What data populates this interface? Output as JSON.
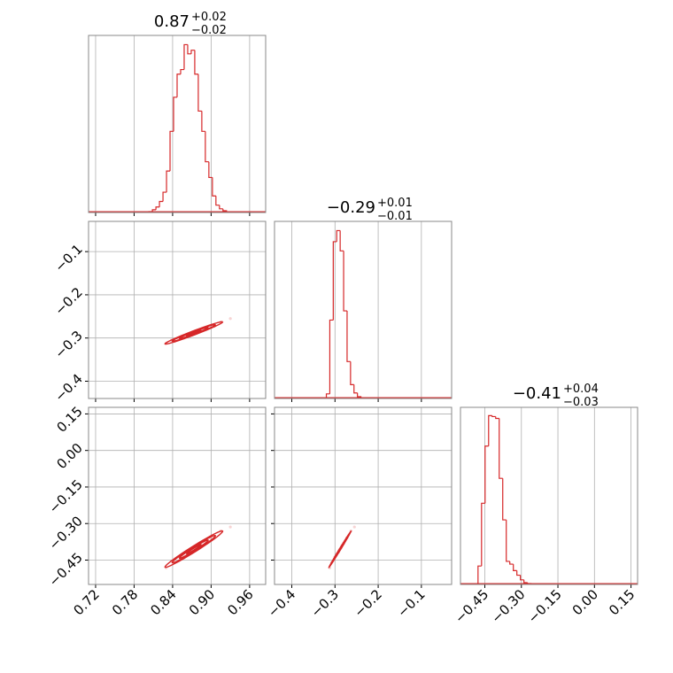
{
  "chart_data": {
    "type": "corner",
    "color": "#d62728",
    "grid": true,
    "hist_ylim": [
      0,
      192
    ],
    "parameters": [
      {
        "title": "0.87",
        "title_upper": "+0.02",
        "title_lower": "−0.02",
        "lim": [
          0.709,
          0.985
        ],
        "ticks": [
          0.72,
          0.78,
          0.84,
          {
            "value": 0.9,
            "label": "0.90"
          },
          0.96
        ],
        "bins": [
          0.803,
          0.8085,
          0.814,
          0.8195,
          0.825,
          0.8305,
          0.836,
          0.8415,
          0.847,
          0.8525,
          0.858,
          0.8635,
          0.869,
          0.8745,
          0.88,
          0.8855,
          0.891,
          0.8965,
          0.902,
          0.9075,
          0.913,
          0.9185,
          0.924
        ],
        "counts": [
          1,
          3,
          6,
          12,
          22,
          45,
          88,
          125,
          150,
          155,
          182,
          172,
          176,
          150,
          110,
          88,
          55,
          38,
          18,
          8,
          4,
          2
        ],
        "samples": [
          0.83,
          0.838,
          0.843,
          0.848,
          0.852,
          0.855,
          0.858,
          0.861,
          0.863,
          0.865,
          0.867,
          0.869,
          0.87,
          0.871,
          0.873,
          0.875,
          0.877,
          0.879,
          0.881,
          0.883,
          0.886,
          0.889,
          0.893,
          0.898,
          0.905,
          0.915,
          0.93
        ]
      },
      {
        "title": "−0.29",
        "title_upper": "+0.01",
        "title_lower": "−0.01",
        "lim": [
          -0.44,
          -0.03
        ],
        "ticks": [
          {
            "value": -0.4,
            "label": "−0.4"
          },
          {
            "value": -0.3,
            "label": "−0.3"
          },
          {
            "value": -0.2,
            "label": "−0.2"
          },
          {
            "value": -0.1,
            "label": "−0.1"
          }
        ],
        "bins": [
          -0.32,
          -0.312,
          -0.304,
          -0.296,
          -0.288,
          -0.28,
          -0.272,
          -0.264,
          -0.256,
          -0.248,
          -0.24
        ],
        "counts": [
          5,
          85,
          170,
          182,
          160,
          95,
          40,
          15,
          6,
          2
        ],
        "samples": [
          -0.312,
          -0.305,
          -0.308,
          -0.3,
          -0.302,
          -0.296,
          -0.3,
          -0.292,
          -0.297,
          -0.29,
          -0.295,
          -0.288,
          -0.292,
          -0.286,
          -0.291,
          -0.285,
          -0.289,
          -0.283,
          -0.286,
          -0.28,
          -0.284,
          -0.277,
          -0.28,
          -0.272,
          -0.273,
          -0.263,
          -0.255
        ]
      },
      {
        "title": "−0.41",
        "title_upper": "+0.04",
        "title_lower": "−0.03",
        "lim": [
          -0.55,
          0.177
        ],
        "ticks": [
          {
            "value": -0.45,
            "label": "−0.45"
          },
          {
            "value": -0.3,
            "label": "−0.30"
          },
          {
            "value": -0.15,
            "label": "−0.15"
          },
          {
            "value": 0,
            "label": "0.00"
          },
          0.15
        ],
        "bins": [
          -0.478,
          -0.4635,
          -0.449,
          -0.4345,
          -0.42,
          -0.4055,
          -0.391,
          -0.3765,
          -0.362,
          -0.3475,
          -0.333,
          -0.3185,
          -0.304,
          -0.2895,
          -0.275,
          -0.2605
        ],
        "counts": [
          20,
          88,
          150,
          183,
          182,
          180,
          115,
          70,
          25,
          22,
          15,
          10,
          5,
          2,
          1
        ],
        "samples": [
          -0.482,
          -0.455,
          -0.46,
          -0.437,
          -0.447,
          -0.425,
          -0.437,
          -0.418,
          -0.43,
          -0.41,
          -0.423,
          -0.405,
          -0.417,
          -0.4,
          -0.412,
          -0.395,
          -0.406,
          -0.39,
          -0.398,
          -0.383,
          -0.39,
          -0.372,
          -0.38,
          -0.358,
          -0.36,
          -0.33,
          -0.314
        ]
      }
    ]
  }
}
